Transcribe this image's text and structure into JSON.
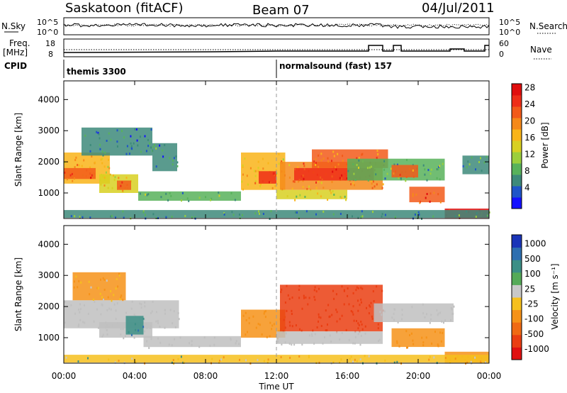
{
  "header": {
    "station": "Saskatoon (fitACF)",
    "beam": "Beam 07",
    "date": "04/Jul/2011"
  },
  "panels": {
    "nsky": {
      "left_label": "N.Sky",
      "right_label": "N.Search",
      "left_ticks": [
        "10^5",
        "10^0"
      ],
      "right_ticks": [
        "10^5",
        "10^0"
      ]
    },
    "freq": {
      "left_label_1": "Freq.",
      "left_label_2": "[MHz]",
      "right_label": "Nave",
      "left_ticks": [
        "18",
        "8"
      ],
      "right_ticks": [
        "60",
        "0"
      ]
    },
    "cpid": {
      "label": "CPID",
      "modes": [
        "themis 3300",
        "normalsound (fast) 157"
      ]
    }
  },
  "axes": {
    "ylabel": "Slant Range [km]",
    "xlabel": "Time UT",
    "y_ticks": [
      "1000",
      "2000",
      "3000",
      "4000"
    ],
    "x_ticks": [
      "00:00",
      "04:00",
      "08:00",
      "12:00",
      "16:00",
      "20:00",
      "00:00"
    ]
  },
  "colorbars": {
    "power": {
      "label": "Power [dB]",
      "ticks": [
        "4",
        "8",
        "12",
        "16",
        "20",
        "24",
        "28"
      ],
      "colors": [
        "#1410ff",
        "#1f55c8",
        "#3d8a7a",
        "#58b25b",
        "#9ccf3c",
        "#d8d021",
        "#f9b419",
        "#f5891a",
        "#f25a1a",
        "#ee2d18",
        "#e00e0e"
      ]
    },
    "velocity": {
      "label": "Velocity [m s⁻¹]",
      "ticks": [
        "1000",
        "500",
        "100",
        "25",
        "-25",
        "-100",
        "-500",
        "-1000"
      ],
      "colors": [
        "#1a35b8",
        "#2e6fb0",
        "#3c8f86",
        "#55aa58",
        "#c8c8c8",
        "#f6c01d",
        "#f69218",
        "#f06a14",
        "#ea3e12",
        "#e01010"
      ],
      "ground_scatter_color": "#c0c0c0"
    }
  },
  "chart_data": {
    "type": "heatmap",
    "title": "Saskatoon (fitACF)",
    "subtitle": "Beam 07",
    "date": "04/Jul/2011",
    "xlabel": "Time UT",
    "ylabel": "Slant Range [km]",
    "xlim_hours": [
      0,
      24
    ],
    "ylim_km": [
      180,
      4600
    ],
    "panels": [
      {
        "name": "Power",
        "unit": "dB",
        "colorbar_range": [
          0,
          30
        ],
        "regions": [
          {
            "t0": 0.0,
            "t1": 2.6,
            "r_lo": 1300,
            "r_hi": 2300,
            "value": 18
          },
          {
            "t0": 0.0,
            "t1": 1.8,
            "r_lo": 1450,
            "r_hi": 1800,
            "value": 24
          },
          {
            "t0": 2.0,
            "t1": 4.2,
            "r_lo": 1000,
            "r_hi": 1600,
            "value": 16
          },
          {
            "t0": 3.0,
            "t1": 3.8,
            "r_lo": 1100,
            "r_hi": 1400,
            "value": 22
          },
          {
            "t0": 1.0,
            "t1": 5.0,
            "r_lo": 2200,
            "r_hi": 3100,
            "value": 6
          },
          {
            "t0": 5.0,
            "t1": 6.4,
            "r_lo": 1700,
            "r_hi": 2600,
            "value": 6
          },
          {
            "t0": 4.2,
            "t1": 10.0,
            "r_lo": 750,
            "r_hi": 1050,
            "value": 10
          },
          {
            "t0": 10.0,
            "t1": 12.5,
            "r_lo": 1100,
            "r_hi": 2300,
            "value": 18
          },
          {
            "t0": 11.0,
            "t1": 12.0,
            "r_lo": 1300,
            "r_hi": 1700,
            "value": 26
          },
          {
            "t0": 12.2,
            "t1": 18.0,
            "r_lo": 1100,
            "r_hi": 2000,
            "value": 20
          },
          {
            "t0": 13.0,
            "t1": 17.5,
            "r_lo": 1400,
            "r_hi": 1800,
            "value": 27
          },
          {
            "t0": 14.0,
            "t1": 18.3,
            "r_lo": 1800,
            "r_hi": 2400,
            "value": 22
          },
          {
            "t0": 12.0,
            "t1": 16.0,
            "r_lo": 800,
            "r_hi": 1100,
            "value": 14
          },
          {
            "t0": 16.0,
            "t1": 21.5,
            "r_lo": 1400,
            "r_hi": 2100,
            "value": 10
          },
          {
            "t0": 18.5,
            "t1": 20.0,
            "r_lo": 1500,
            "r_hi": 1900,
            "value": 22
          },
          {
            "t0": 19.5,
            "t1": 21.5,
            "r_lo": 700,
            "r_hi": 1200,
            "value": 24
          },
          {
            "t0": 21.5,
            "t1": 24.0,
            "r_lo": 200,
            "r_hi": 500,
            "value": 28
          },
          {
            "t0": 22.5,
            "t1": 24.0,
            "r_lo": 1600,
            "r_hi": 2200,
            "value": 8
          },
          {
            "t0": 0.0,
            "t1": 24.0,
            "r_lo": 200,
            "r_hi": 450,
            "value": 8
          }
        ]
      },
      {
        "name": "Velocity",
        "unit": "m s-1",
        "colorbar_range": [
          -1000,
          1000
        ],
        "regions": [
          {
            "t0": 0.0,
            "t1": 6.5,
            "r_lo": 1300,
            "r_hi": 2200,
            "value": 0,
            "ground_scatter": true
          },
          {
            "t0": 2.0,
            "t1": 5.0,
            "r_lo": 1000,
            "r_hi": 1500,
            "value": 0,
            "ground_scatter": true
          },
          {
            "t0": 3.5,
            "t1": 4.5,
            "r_lo": 1100,
            "r_hi": 1700,
            "value": 100
          },
          {
            "t0": 4.5,
            "t1": 10.0,
            "r_lo": 700,
            "r_hi": 1050,
            "value": 0,
            "ground_scatter": true
          },
          {
            "t0": 0.5,
            "t1": 3.5,
            "r_lo": 2200,
            "r_hi": 3100,
            "value": -100
          },
          {
            "t0": 10.0,
            "t1": 12.5,
            "r_lo": 1000,
            "r_hi": 1900,
            "value": -300
          },
          {
            "t0": 12.2,
            "t1": 18.0,
            "r_lo": 1200,
            "r_hi": 2700,
            "value": -600
          },
          {
            "t0": 12.0,
            "t1": 18.0,
            "r_lo": 800,
            "r_hi": 1200,
            "value": 0,
            "ground_scatter": true
          },
          {
            "t0": 17.5,
            "t1": 22.0,
            "r_lo": 1500,
            "r_hi": 2100,
            "value": 0,
            "ground_scatter": true
          },
          {
            "t0": 18.5,
            "t1": 21.5,
            "r_lo": 700,
            "r_hi": 1300,
            "value": -300
          },
          {
            "t0": 21.5,
            "t1": 24.0,
            "r_lo": 200,
            "r_hi": 550,
            "value": -400
          },
          {
            "t0": 0.0,
            "t1": 24.0,
            "r_lo": 200,
            "r_hi": 450,
            "value": -50
          }
        ]
      }
    ]
  }
}
